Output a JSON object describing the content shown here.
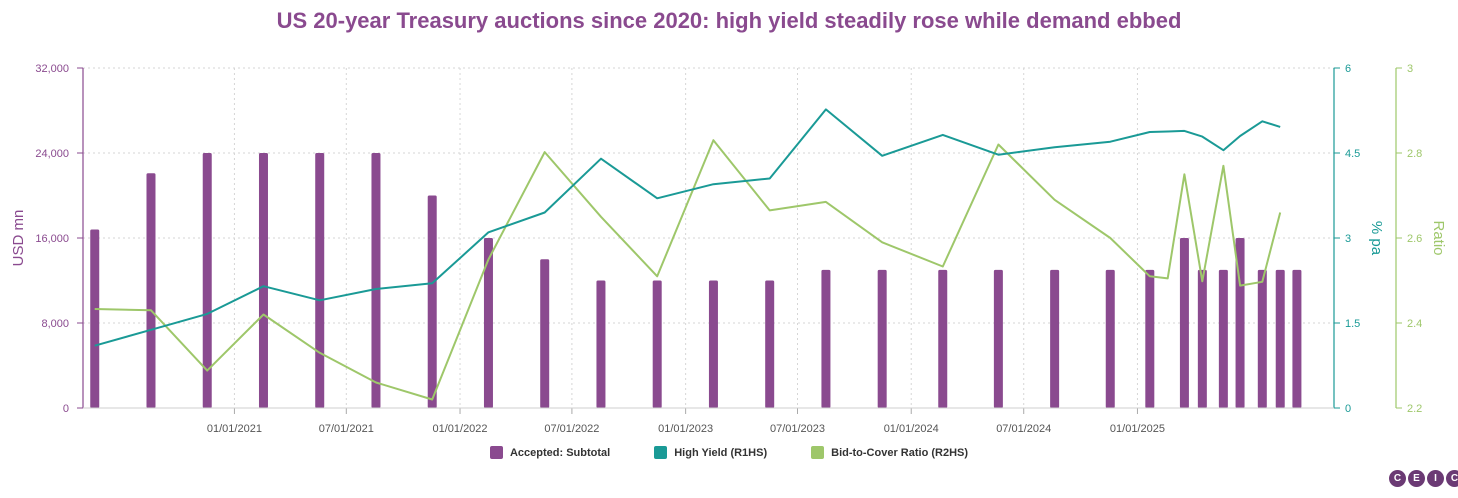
{
  "chart_data": {
    "type": "bar+line",
    "title": "US 20-year Treasury auctions since 2020: high yield steadily rose while demand ebbed",
    "ylabel_left": "USD mn",
    "ylabel_right1": "% pa",
    "ylabel_right2": "Ratio",
    "y_left_ticks": [
      "0",
      "8,000",
      "16,000",
      "24,000",
      "32,000"
    ],
    "y_left_range": [
      0,
      32000
    ],
    "y_right1_ticks": [
      "0",
      "1.5",
      "3",
      "4.5",
      "6"
    ],
    "y_right1_range": [
      0,
      6
    ],
    "y_right2_ticks": [
      "2.2",
      "2.4",
      "2.6",
      "2.8",
      "3"
    ],
    "y_right2_range": [
      2.2,
      3.0
    ],
    "x_tick_labels": [
      "01/01/2021",
      "07/01/2021",
      "01/01/2022",
      "07/01/2022",
      "01/01/2023",
      "07/01/2023",
      "01/01/2024",
      "07/01/2024",
      "01/01/2025"
    ],
    "x_range": [
      "2020-05-01",
      "2025-11-15"
    ],
    "grid": true,
    "legend_position": "bottom",
    "colors": {
      "accepted": "#8a4a8f",
      "high_yield": "#1a9a96",
      "bid_cover": "#9ec76a",
      "title": "#8a4a8f"
    },
    "series": [
      {
        "name": "Accepted: Subtotal",
        "type": "bar",
        "axis": "left",
        "x": [
          "2020-05-20",
          "2020-08-19",
          "2020-11-18",
          "2021-02-17",
          "2021-05-19",
          "2021-08-18",
          "2021-11-17",
          "2022-02-16",
          "2022-05-18",
          "2022-08-17",
          "2022-11-16",
          "2023-02-15",
          "2023-05-17",
          "2023-08-16",
          "2023-11-15",
          "2024-02-21",
          "2024-05-21",
          "2024-08-20",
          "2024-11-18",
          "2025-01-21",
          "2025-03-18",
          "2025-04-16",
          "2025-05-20",
          "2025-06-16",
          "2025-07-22",
          "2025-08-20",
          "2025-09-16"
        ],
        "values": [
          16800,
          22100,
          24000,
          24000,
          24000,
          24000,
          20000,
          16000,
          14000,
          12000,
          12000,
          12000,
          12000,
          13000,
          13000,
          13000,
          13000,
          13000,
          13000,
          13000,
          16000,
          13000,
          13000,
          16000,
          13000,
          13000,
          13000
        ]
      },
      {
        "name": "High Yield (R1HS)",
        "type": "line",
        "axis": "right1",
        "x": [
          "2020-05-20",
          "2020-08-19",
          "2020-11-18",
          "2021-02-17",
          "2021-05-19",
          "2021-08-18",
          "2021-11-17",
          "2022-02-16",
          "2022-05-18",
          "2022-08-17",
          "2022-11-16",
          "2023-02-15",
          "2023-05-17",
          "2023-08-16",
          "2023-11-15",
          "2024-02-21",
          "2024-05-21",
          "2024-08-20",
          "2024-11-18",
          "2025-01-21",
          "2025-02-19",
          "2025-03-18",
          "2025-04-16",
          "2025-05-20",
          "2025-06-16",
          "2025-07-22",
          "2025-08-20"
        ],
        "values": [
          1.1,
          1.38,
          1.66,
          2.15,
          1.9,
          2.1,
          2.2,
          3.1,
          3.45,
          4.4,
          3.7,
          3.95,
          4.05,
          5.27,
          4.45,
          4.82,
          4.47,
          4.6,
          4.7,
          4.87,
          4.88,
          4.89,
          4.79,
          4.55,
          4.8,
          5.06,
          4.96
        ]
      },
      {
        "name": "Bid-to-Cover Ratio (R2HS)",
        "type": "line",
        "axis": "right2",
        "x": [
          "2020-05-20",
          "2020-08-19",
          "2020-11-18",
          "2021-02-17",
          "2021-05-19",
          "2021-08-18",
          "2021-11-17",
          "2022-02-16",
          "2022-05-18",
          "2022-08-17",
          "2022-11-16",
          "2023-02-15",
          "2023-05-17",
          "2023-08-16",
          "2023-11-15",
          "2024-02-21",
          "2024-05-21",
          "2024-08-20",
          "2024-11-18",
          "2025-01-21",
          "2025-02-19",
          "2025-03-18",
          "2025-04-16",
          "2025-05-20",
          "2025-06-16",
          "2025-07-22",
          "2025-08-20"
        ],
        "values": [
          2.433,
          2.43,
          2.288,
          2.42,
          2.33,
          2.26,
          2.22,
          2.55,
          2.802,
          2.65,
          2.51,
          2.83,
          2.665,
          2.685,
          2.59,
          2.533,
          2.82,
          2.69,
          2.6,
          2.51,
          2.505,
          2.75,
          2.498,
          2.77,
          2.488,
          2.497,
          2.66
        ]
      }
    ]
  }
}
